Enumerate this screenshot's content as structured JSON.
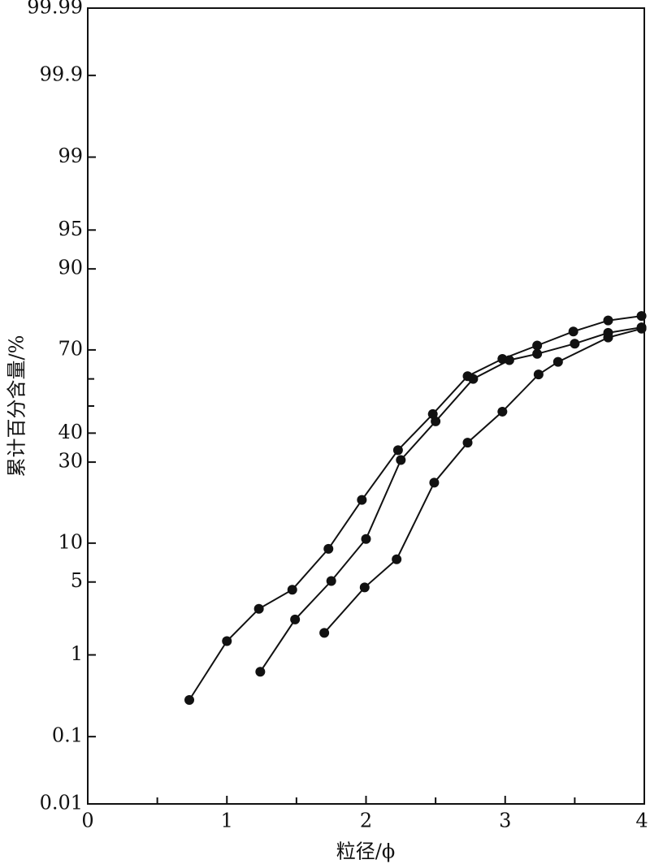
{
  "chart_data": {
    "type": "scatter_line",
    "y_scale": "probability",
    "x_label": "粒径/ϕ",
    "y_label": "累计百分含量/%",
    "xlim": [
      0,
      4
    ],
    "xticks": [
      0,
      1,
      2,
      3,
      4
    ],
    "x_minor_ticks": [
      0.5,
      1.5,
      2.5,
      3.5
    ],
    "ylim": [
      0.01,
      99.99
    ],
    "yticks": [
      0.01,
      0.1,
      1,
      5,
      10,
      30,
      40,
      70,
      90,
      95,
      99,
      99.9,
      99.99
    ],
    "y_minor_ticks": [
      50,
      60
    ],
    "color": "#111111",
    "series": [
      {
        "x": [
          0.73,
          1.0,
          1.23,
          1.47,
          1.73,
          1.97,
          2.23,
          2.48,
          2.73,
          2.98,
          3.23,
          3.49,
          3.74,
          3.98
        ],
        "values": [
          0.3,
          1.4,
          2.9,
          4.3,
          9.1,
          19,
          34,
          47,
          61,
          67,
          71.4,
          75.7,
          78.8,
          80
        ]
      },
      {
        "x": [
          1.24,
          1.49,
          1.75,
          2.0,
          2.25,
          2.5,
          2.77,
          3.03,
          3.23,
          3.5,
          3.74,
          3.98
        ],
        "values": [
          0.65,
          2.3,
          5.1,
          10.7,
          30.7,
          44.3,
          60,
          66.6,
          68.7,
          72,
          75.3,
          76.9
        ]
      },
      {
        "x": [
          1.7,
          1.99,
          2.22,
          2.49,
          2.73,
          2.98,
          3.24,
          3.38,
          3.74,
          3.98
        ],
        "values": [
          1.7,
          4.5,
          7.6,
          23.7,
          36.6,
          47.9,
          61.6,
          66,
          73.9,
          76.5
        ]
      }
    ]
  }
}
